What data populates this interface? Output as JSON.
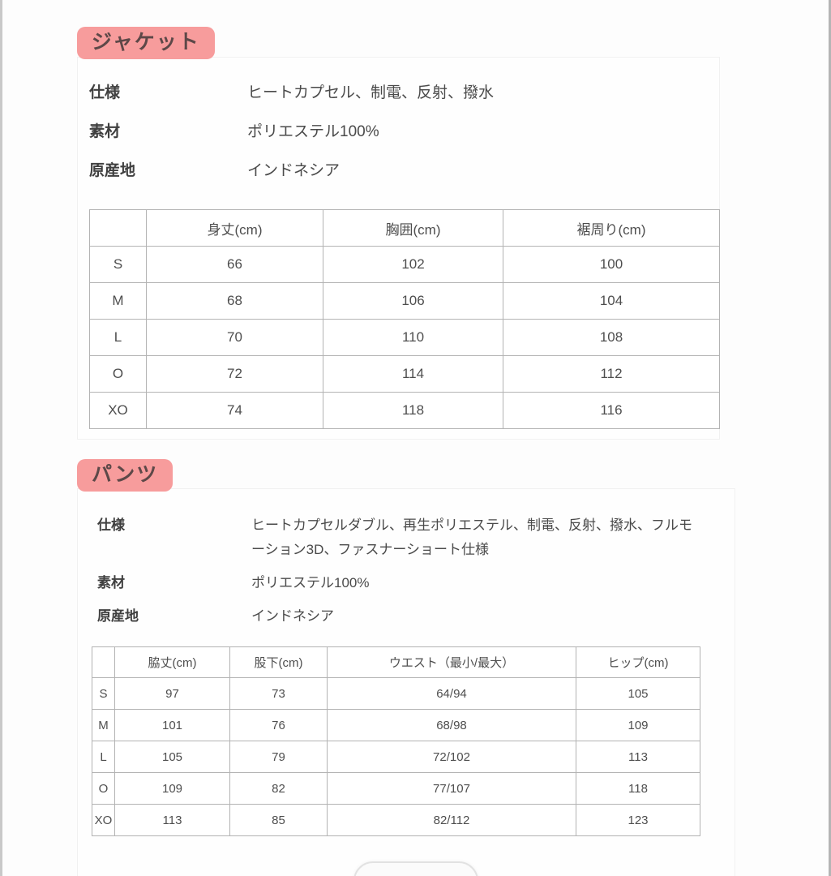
{
  "page": {
    "accent_pink": "#f79c9c",
    "table_border_gray": "#b3b3b3"
  },
  "sections": [
    {
      "id": "jacket",
      "badge": "ジャケット",
      "specs": [
        {
          "label": "仕様",
          "value": "ヒートカプセル、制電、反射、撥水"
        },
        {
          "label": "素材",
          "value": "ポリエステル100%"
        },
        {
          "label": "原産地",
          "value": "インドネシア"
        }
      ],
      "table": {
        "headers": [
          "",
          "身丈(cm)",
          "胸囲(cm)",
          "裾周り(cm)"
        ],
        "rows": [
          [
            "S",
            "66",
            "102",
            "100"
          ],
          [
            "M",
            "68",
            "106",
            "104"
          ],
          [
            "L",
            "70",
            "110",
            "108"
          ],
          [
            "O",
            "72",
            "114",
            "112"
          ],
          [
            "XO",
            "74",
            "118",
            "116"
          ]
        ]
      }
    },
    {
      "id": "pants",
      "badge": "パンツ",
      "specs": [
        {
          "label": "仕様",
          "value": "ヒートカプセルダブル、再生ポリエステル、制電、反射、撥水、フルモーション3D、ファスナーショート仕様"
        },
        {
          "label": "素材",
          "value": "ポリエステル100%"
        },
        {
          "label": "原産地",
          "value": "インドネシア"
        }
      ],
      "table": {
        "headers": [
          "",
          "脇丈(cm)",
          "股下(cm)",
          "ウエスト（最小/最大）",
          "ヒップ(cm)"
        ],
        "rows": [
          [
            "S",
            "97",
            "73",
            "64/94",
            "105"
          ],
          [
            "M",
            "101",
            "76",
            "68/98",
            "109"
          ],
          [
            "L",
            "105",
            "79",
            "72/102",
            "113"
          ],
          [
            "O",
            "109",
            "82",
            "77/107",
            "118"
          ],
          [
            "XO",
            "113",
            "85",
            "82/112",
            "123"
          ]
        ]
      }
    }
  ]
}
